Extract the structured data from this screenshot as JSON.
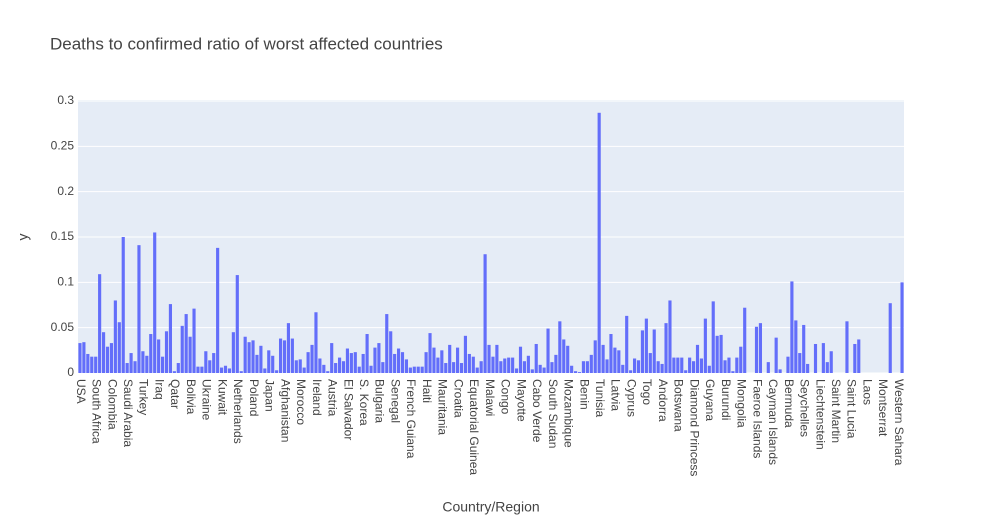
{
  "chart_data": {
    "type": "bar",
    "title": "Deaths to confirmed ratio of worst affected countries",
    "x_label": "Country/Region",
    "y_label": "y",
    "color": "#636efa",
    "grid": true,
    "ylim": [
      0,
      0.3
    ],
    "yticks": [
      0,
      0.05,
      0.1,
      0.15,
      0.2,
      0.25,
      0.3
    ],
    "categories": [
      "USA",
      null,
      null,
      null,
      "South Africa",
      null,
      null,
      null,
      "Colombia",
      null,
      null,
      null,
      "Saudi Arabia",
      null,
      null,
      null,
      "Turkey",
      null,
      null,
      null,
      "Iraq",
      null,
      null,
      null,
      "Qatar",
      null,
      null,
      null,
      "Bolivia",
      null,
      null,
      null,
      "Ukraine",
      null,
      null,
      null,
      "Kuwait",
      null,
      null,
      null,
      "Netherlands",
      null,
      null,
      null,
      "Poland",
      null,
      null,
      null,
      "Japan",
      null,
      null,
      null,
      "Afghanistan",
      null,
      null,
      null,
      "Morocco",
      null,
      null,
      null,
      "Ireland",
      null,
      null,
      null,
      "Austria",
      null,
      null,
      null,
      "El Salvador",
      null,
      null,
      null,
      "S. Korea",
      null,
      null,
      null,
      "Bulgaria",
      null,
      null,
      null,
      "Senegal",
      null,
      null,
      null,
      "French Guiana",
      null,
      null,
      null,
      "Haiti",
      null,
      null,
      null,
      "Mauritania",
      null,
      null,
      null,
      "Croatia",
      null,
      null,
      null,
      "Equatorial Guinea",
      null,
      null,
      null,
      "Malawi",
      null,
      null,
      null,
      "Congo",
      null,
      null,
      null,
      "Mayotte",
      null,
      null,
      null,
      "Cabo Verde",
      null,
      null,
      null,
      "South Sudan",
      null,
      null,
      null,
      "Mozambique",
      null,
      null,
      null,
      "Benin",
      null,
      null,
      null,
      "Tunisia",
      null,
      null,
      null,
      "Latvia",
      null,
      null,
      null,
      "Cyprus",
      null,
      null,
      null,
      "Togo",
      null,
      null,
      null,
      "Andorra",
      null,
      null,
      null,
      "Botswana",
      null,
      null,
      null,
      "Diamond Princess",
      null,
      null,
      null,
      "Guyana",
      null,
      null,
      null,
      "Burundi",
      null,
      null,
      null,
      "Mongolia",
      null,
      null,
      null,
      "Faeroe Islands",
      null,
      null,
      null,
      "Cayman Islands",
      null,
      null,
      null,
      "Bermuda",
      null,
      null,
      null,
      "Seychelles",
      null,
      null,
      null,
      "Liechtenstein",
      null,
      null,
      null,
      "Saint Martin",
      null,
      null,
      null,
      "Saint Lucia",
      null,
      null,
      null,
      "Laos",
      null,
      null,
      null,
      "Montserrat",
      null,
      null,
      null,
      "Western Sahara",
      null
    ],
    "values": [
      0.033,
      0.034,
      0.021,
      0.018,
      0.018,
      0.109,
      0.045,
      0.029,
      0.033,
      0.08,
      0.056,
      0.15,
      0.011,
      0.022,
      0.013,
      0.141,
      0.024,
      0.019,
      0.043,
      0.155,
      0.037,
      0.018,
      0.046,
      0.076,
      0.002,
      0.011,
      0.052,
      0.065,
      0.04,
      0.071,
      0.007,
      0.007,
      0.024,
      0.014,
      0.022,
      0.138,
      0.006,
      0.008,
      0.005,
      0.045,
      0.108,
      0.002,
      0.04,
      0.034,
      0.036,
      0.02,
      0.03,
      0.005,
      0.025,
      0.019,
      0.003,
      0.038,
      0.036,
      0.055,
      0.038,
      0.014,
      0.015,
      0.006,
      0.023,
      0.031,
      0.067,
      0.016,
      0.009,
      0.002,
      0.033,
      0.011,
      0.017,
      0.013,
      0.027,
      0.022,
      0.023,
      0.007,
      0.021,
      0.043,
      0.008,
      0.028,
      0.033,
      0.012,
      0.065,
      0.046,
      0.021,
      0.027,
      0.023,
      0.015,
      0.006,
      0.007,
      0.007,
      0.007,
      0.023,
      0.044,
      0.028,
      0.017,
      0.025,
      0.011,
      0.031,
      0.012,
      0.028,
      0.011,
      0.041,
      0.021,
      0.018,
      0.006,
      0.013,
      0.131,
      0.031,
      0.018,
      0.031,
      0.013,
      0.016,
      0.017,
      0.017,
      0.005,
      0.029,
      0.013,
      0.019,
      0.004,
      0.032,
      0.009,
      0.006,
      0.049,
      0.012,
      0.02,
      0.057,
      0.037,
      0.03,
      0.008,
      0.002,
      0.001,
      0.013,
      0.013,
      0.02,
      0.036,
      0.287,
      0.031,
      0.015,
      0.043,
      0.028,
      0.025,
      0.009,
      0.063,
      0.003,
      0.016,
      0.014,
      0.047,
      0.06,
      0.022,
      0.048,
      0.013,
      0.01,
      0.055,
      0.08,
      0.017,
      0.017,
      0.017,
      0.003,
      0.017,
      0.013,
      0.031,
      0.016,
      0.06,
      0.008,
      0.079,
      0.041,
      0.042,
      0.014,
      0.017,
      0.002,
      0.017,
      0.029,
      0.072,
      0,
      0,
      0.051,
      0.055,
      0,
      0.012,
      0,
      0.039,
      0.004,
      0,
      0.018,
      0.101,
      0.058,
      0.022,
      0.053,
      0.01,
      0,
      0.032,
      0,
      0.033,
      0.012,
      0.024,
      0,
      0,
      0,
      0.057,
      0,
      0.032,
      0.037,
      0,
      0,
      0,
      0,
      0,
      0,
      0,
      0.077,
      0,
      0,
      0.1
    ]
  }
}
